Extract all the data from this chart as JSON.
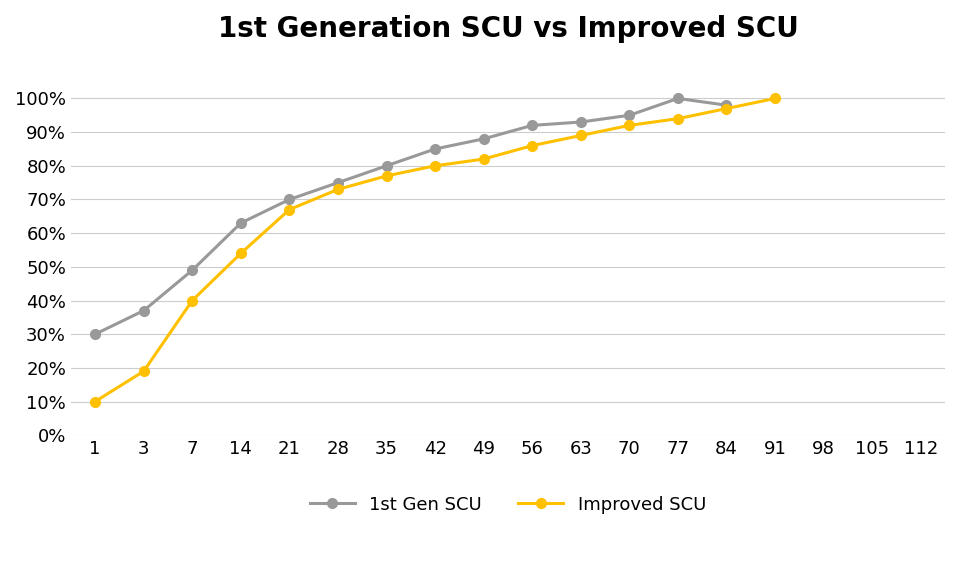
{
  "title": "1st Generation SCU vs Improved SCU",
  "x_tick_labels": [
    "1",
    "3",
    "7",
    "14",
    "21",
    "28",
    "35",
    "42",
    "49",
    "56",
    "63",
    "70",
    "77",
    "84",
    "91",
    "98",
    "105",
    "112"
  ],
  "x_data_indices": [
    0,
    1,
    2,
    3,
    4,
    5,
    6,
    7,
    8,
    9,
    10,
    11,
    12,
    13,
    14
  ],
  "gen1_scu": [
    0.3,
    0.37,
    0.49,
    0.63,
    0.7,
    0.75,
    0.8,
    0.85,
    0.88,
    0.92,
    0.93,
    0.95,
    1.0,
    0.98,
    null
  ],
  "improved_scu": [
    0.1,
    0.19,
    0.4,
    0.54,
    0.67,
    0.73,
    0.77,
    0.8,
    0.82,
    0.86,
    0.89,
    0.92,
    0.94,
    0.97,
    1.0
  ],
  "gen1_color": "#999999",
  "improved_color": "#FFC000",
  "legend_labels": [
    "1st Gen SCU",
    "Improved SCU"
  ],
  "ylim": [
    0,
    1.1
  ],
  "y_ticks": [
    0.0,
    0.1,
    0.2,
    0.3,
    0.4,
    0.5,
    0.6,
    0.7,
    0.8,
    0.9,
    1.0
  ],
  "background_color": "#FFFFFF",
  "grid_color": "#CCCCCC",
  "title_fontsize": 20,
  "tick_fontsize": 13,
  "legend_fontsize": 13,
  "line_width": 2.2,
  "marker_size": 7
}
